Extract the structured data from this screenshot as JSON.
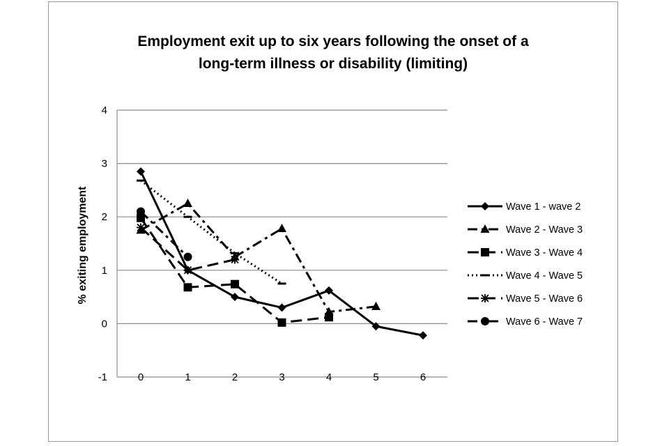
{
  "chart_data": {
    "type": "line",
    "title_lines": [
      "Employment exit up to six years following the onset of a",
      "long-term illness or disability (limiting)"
    ],
    "xlabel": "",
    "ylabel": "% exiting employment",
    "x": [
      0,
      1,
      2,
      3,
      4,
      5,
      6
    ],
    "x_tick_labels": [
      "0",
      "1",
      "2",
      "3",
      "4",
      "5",
      "6"
    ],
    "ylim": [
      -1,
      4
    ],
    "y_ticks": [
      4,
      3,
      2,
      1,
      0,
      -1
    ],
    "y_tick_labels": [
      "4",
      "3",
      "2",
      "1",
      "0",
      "-1"
    ],
    "grid": true,
    "legend_position": "right",
    "series": [
      {
        "name": "Wave 1 - wave 2",
        "marker": "diamond",
        "dash": "solid",
        "x": [
          0,
          1,
          2,
          3,
          4,
          5,
          6
        ],
        "values": [
          2.85,
          1.0,
          0.5,
          0.3,
          0.62,
          -0.05,
          -0.22
        ]
      },
      {
        "name": "Wave 2 - Wave 3",
        "marker": "triangle",
        "dash": "dashdot",
        "x": [
          0,
          1,
          2,
          3,
          4,
          5
        ],
        "values": [
          1.75,
          2.25,
          1.25,
          1.78,
          0.22,
          0.32
        ]
      },
      {
        "name": "Wave 3 - Wave 4",
        "marker": "square",
        "dash": "longdash",
        "x": [
          0,
          1,
          2,
          3,
          4
        ],
        "values": [
          1.98,
          0.68,
          0.74,
          0.02,
          0.12
        ]
      },
      {
        "name": "Wave 4 - Wave 5",
        "marker": "dash",
        "dash": "dotted",
        "x": [
          0,
          1,
          2,
          3
        ],
        "values": [
          2.68,
          2.0,
          1.32,
          0.75
        ]
      },
      {
        "name": "Wave 5 - Wave 6",
        "marker": "star",
        "dash": "longdash",
        "x": [
          0,
          1,
          2
        ],
        "values": [
          1.8,
          1.0,
          1.2
        ]
      },
      {
        "name": "Wave 6 - Wave 7",
        "marker": "circle",
        "dash": "dashdot",
        "x": [
          0,
          1
        ],
        "values": [
          2.1,
          1.25
        ]
      }
    ]
  }
}
